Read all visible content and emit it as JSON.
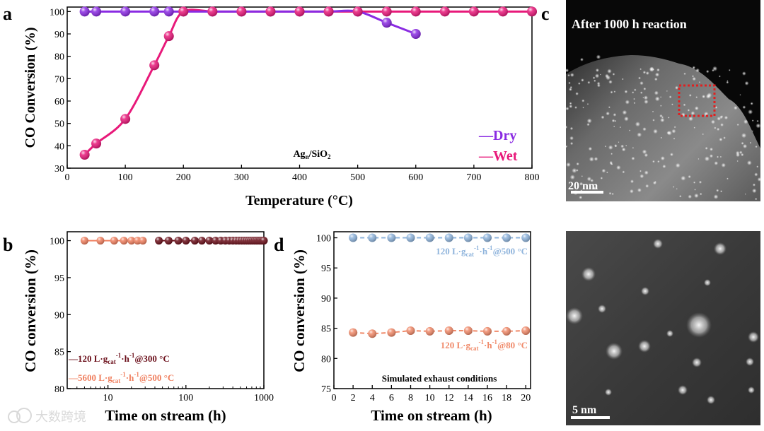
{
  "panels": {
    "a": {
      "letter": "a"
    },
    "b": {
      "letter": "b"
    },
    "c": {
      "letter": "c"
    },
    "d": {
      "letter": "d"
    }
  },
  "colors": {
    "dry": "#8a2be2",
    "wet": "#e8197a",
    "b_low": "#6b0f1a",
    "b_high": "#f08060",
    "d_500": "#8fb4dc",
    "d_80": "#f08a6a",
    "scale_bar": "#ffffff",
    "roi_box": "#e02020"
  },
  "chart_data": [
    {
      "panel": "a",
      "type": "line",
      "title": "",
      "xlabel": "Temperature (°C)",
      "ylabel": "CO  Conversion (%)",
      "xlim": [
        0,
        800
      ],
      "ylim": [
        30,
        102
      ],
      "xticks": [
        0,
        100,
        200,
        300,
        400,
        500,
        600,
        700,
        800
      ],
      "yticks": [
        30,
        40,
        50,
        60,
        70,
        80,
        90,
        100
      ],
      "annotation": "Ag",
      "annotation_sub": "n",
      "annotation_tail": "/SiO",
      "annotation_sub2": "2",
      "legend_position": "bottom-right",
      "series": [
        {
          "name": "Dry",
          "legend_label": "—Dry",
          "color": "#8a2be2",
          "x": [
            30,
            50,
            100,
            150,
            175,
            200,
            250,
            300,
            350,
            400,
            450,
            500,
            550,
            600
          ],
          "y": [
            100,
            100,
            100,
            100,
            100,
            100,
            100,
            100,
            100,
            100,
            100,
            100,
            95,
            90
          ]
        },
        {
          "name": "Wet",
          "legend_label": "—Wet",
          "color": "#e8197a",
          "x": [
            30,
            50,
            100,
            150,
            175,
            200,
            250,
            300,
            350,
            400,
            450,
            500,
            550,
            600,
            650,
            700,
            750,
            800
          ],
          "y": [
            36,
            41,
            52,
            76,
            89,
            100,
            100,
            100,
            100,
            100,
            100,
            100,
            100,
            100,
            100,
            100,
            100,
            100
          ]
        }
      ]
    },
    {
      "panel": "b",
      "type": "scatter",
      "xscale": "log",
      "xlabel": "Time on stream (h)",
      "ylabel": "CO conversion (%)",
      "xlim": [
        3,
        1000
      ],
      "ylim": [
        80,
        101.2
      ],
      "xticks": [
        10,
        100,
        1000
      ],
      "yticks": [
        80,
        85,
        90,
        95,
        100
      ],
      "legend_position": "bottom-left",
      "series": [
        {
          "name": "120 L·gcat-1·h-1@300 °C",
          "legend_prefix": "—120 L·g",
          "legend_sub": "cat",
          "legend_sup1": "-1",
          "legend_mid": "·h",
          "legend_sup2": "-1",
          "legend_tail": "@300 °C",
          "color": "#6b0f1a",
          "x": [
            45,
            60,
            80,
            100,
            130,
            160,
            200,
            240,
            280,
            320,
            360,
            400,
            440,
            480,
            520,
            560,
            600,
            640,
            680,
            720,
            760,
            800,
            840,
            880,
            920,
            960,
            1000
          ],
          "y": [
            100,
            100,
            100,
            100,
            100,
            100,
            100,
            100,
            100,
            100,
            100,
            100,
            100,
            100,
            100,
            100,
            100,
            100,
            100,
            100,
            100,
            100,
            100,
            100,
            100,
            100,
            100
          ]
        },
        {
          "name": "5600 L·gcat-1·h-1@500 °C",
          "legend_prefix": "—5600 L·g",
          "legend_sub": "cat",
          "legend_sup1": "-1",
          "legend_mid": "·h",
          "legend_sup2": "-1",
          "legend_tail": "@500 °C",
          "color": "#f08060",
          "x": [
            5,
            8,
            12,
            16,
            20,
            24,
            28
          ],
          "y": [
            100,
            100,
            100,
            100,
            100,
            100,
            100
          ]
        }
      ]
    },
    {
      "panel": "d",
      "type": "line",
      "xlabel": "Time on stream (h)",
      "ylabel": "CO conversion (%)",
      "xlim": [
        0,
        20.5
      ],
      "ylim": [
        75,
        101
      ],
      "xticks": [
        0,
        2,
        4,
        6,
        8,
        10,
        12,
        14,
        16,
        18,
        20
      ],
      "yticks": [
        75,
        80,
        85,
        90,
        95,
        100
      ],
      "annotation": "Simulated exhaust conditions",
      "series": [
        {
          "name": "120 L·gcat-1·h-1@500 °C",
          "legend_prefix": "120 L·g",
          "legend_sub": "cat",
          "legend_sup1": "-1",
          "legend_mid": "·h",
          "legend_sup2": "-1",
          "legend_tail": "@500 °C",
          "color": "#8fb4dc",
          "x": [
            2,
            4,
            6,
            8,
            10,
            12,
            14,
            16,
            18,
            20
          ],
          "y": [
            100,
            100,
            100,
            100,
            100,
            100,
            100,
            100,
            100,
            100
          ]
        },
        {
          "name": "120 L·gcat-1·h-1@80 °C",
          "legend_prefix": "120 L·g",
          "legend_sub": "cat",
          "legend_sup1": "-1",
          "legend_mid": "·h",
          "legend_sup2": "-1",
          "legend_tail": "@80 °C",
          "color": "#f08a6a",
          "x": [
            2,
            4,
            6,
            8,
            10,
            12,
            14,
            16,
            18,
            20
          ],
          "y": [
            84.3,
            84.1,
            84.3,
            84.6,
            84.5,
            84.6,
            84.6,
            84.5,
            84.5,
            84.6
          ]
        }
      ]
    }
  ],
  "images": {
    "c_top": {
      "caption": "After 1000 h reaction",
      "scale_label": "20 nm"
    },
    "c_bottom": {
      "scale_label": "5 nm"
    }
  },
  "watermark": {
    "text": "大数跨境"
  }
}
